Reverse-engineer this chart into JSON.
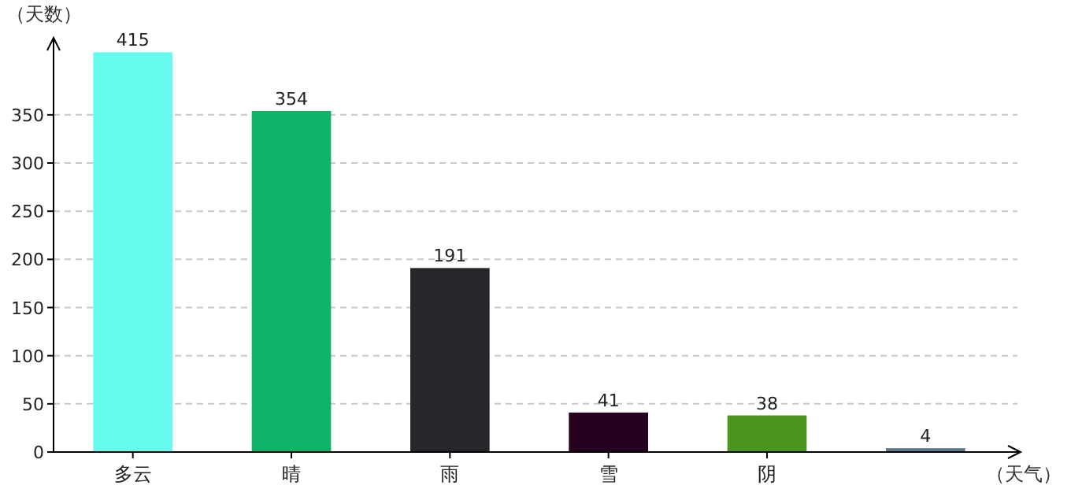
{
  "chart_data": {
    "type": "bar",
    "xlabel": "（天气）",
    "ylabel": "（天数）",
    "categories": [
      "多云",
      "晴",
      "雨",
      "雪",
      "阴",
      null
    ],
    "values": [
      415,
      354,
      191,
      41,
      38,
      4
    ],
    "colors": [
      "#66fbee",
      "#0db368",
      "#27272b",
      "#25001f",
      "#4a961c",
      "#5e7a8e"
    ],
    "ylim": [
      0,
      430
    ],
    "yticks": [
      0,
      50,
      100,
      150,
      200,
      250,
      300,
      350
    ],
    "grid": "y",
    "data_labels": true
  }
}
